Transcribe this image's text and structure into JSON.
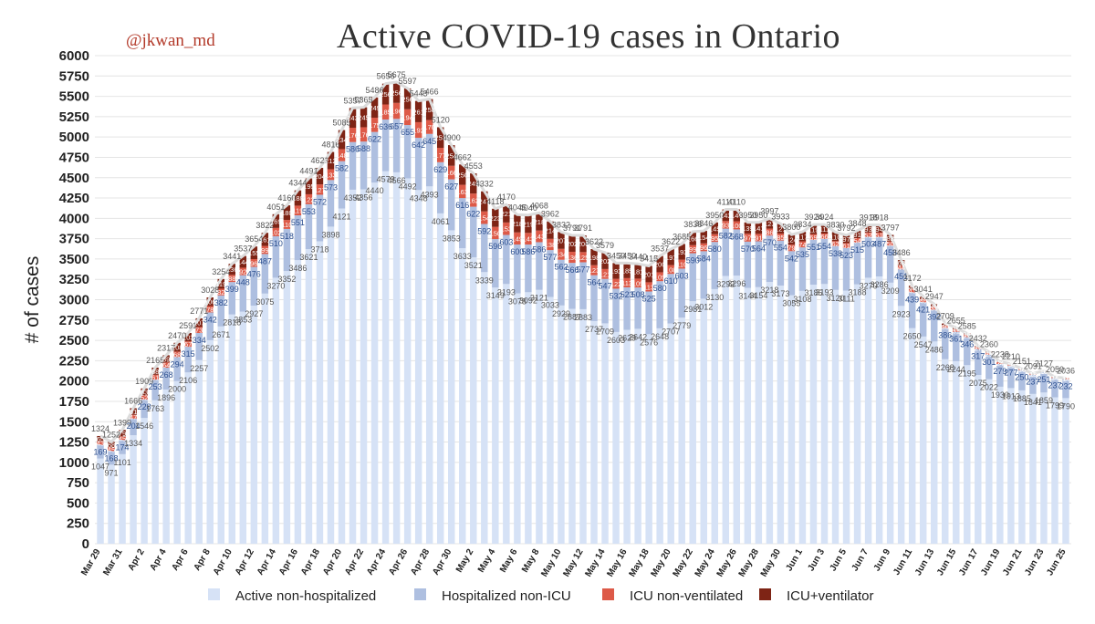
{
  "watermark": "@jkwan_md",
  "chart_data": {
    "type": "bar",
    "stacked": true,
    "title": "Active COVID-19 cases in Ontario",
    "ylabel": "# of cases",
    "xlabel": "",
    "ylim": [
      0,
      6000
    ],
    "yticks": [
      0,
      250,
      500,
      750,
      1000,
      1250,
      1500,
      1750,
      2000,
      2250,
      2500,
      2750,
      3000,
      3250,
      3500,
      3750,
      4000,
      4250,
      4500,
      4750,
      5000,
      5250,
      5500,
      5750,
      6000
    ],
    "grid": true,
    "legend_position": "bottom",
    "xtick_labels": [
      "Mar 29",
      "Mar 31",
      "Apr 2",
      "Apr 4",
      "Apr 6",
      "Apr 8",
      "Apr 10",
      "Apr 12",
      "Apr 14",
      "Apr 16",
      "Apr 18",
      "Apr 20",
      "Apr 22",
      "Apr 24",
      "Apr 26",
      "Apr 28",
      "Apr 30",
      "May 2",
      "May 4",
      "May 6",
      "May 8",
      "May 10",
      "May 12",
      "May 14",
      "May 16",
      "May 18",
      "May 20",
      "May 22",
      "May 24",
      "May 26",
      "May 28",
      "May 30",
      "Jun 1",
      "Jun 3",
      "Jun 5",
      "Jun 7",
      "Jun 9",
      "Jun 11",
      "Jun 13",
      "Jun 15",
      "Jun 17",
      "Jun 19",
      "Jun 21",
      "Jun 23",
      "Jun 25"
    ],
    "categories": [
      "Mar 29",
      "Mar 30",
      "Mar 31",
      "Apr 1",
      "Apr 2",
      "Apr 3",
      "Apr 4",
      "Apr 5",
      "Apr 6",
      "Apr 7",
      "Apr 8",
      "Apr 9",
      "Apr 10",
      "Apr 11",
      "Apr 12",
      "Apr 13",
      "Apr 14",
      "Apr 15",
      "Apr 16",
      "Apr 17",
      "Apr 18",
      "Apr 19",
      "Apr 20",
      "Apr 21",
      "Apr 22",
      "Apr 23",
      "Apr 24",
      "Apr 25",
      "Apr 26",
      "Apr 27",
      "Apr 28",
      "Apr 29",
      "Apr 30",
      "May 1",
      "May 2",
      "May 3",
      "May 4",
      "May 5",
      "May 6",
      "May 7",
      "May 8",
      "May 9",
      "May 10",
      "May 11",
      "May 12",
      "May 13",
      "May 14",
      "May 15",
      "May 16",
      "May 17",
      "May 18",
      "May 19",
      "May 20",
      "May 21",
      "May 22",
      "May 23",
      "May 24",
      "May 25",
      "May 26",
      "May 27",
      "May 28",
      "May 29",
      "May 30",
      "May 31",
      "Jun 1",
      "Jun 2",
      "Jun 3",
      "Jun 4",
      "Jun 5",
      "Jun 6",
      "Jun 7",
      "Jun 8",
      "Jun 9",
      "Jun 10",
      "Jun 11",
      "Jun 12",
      "Jun 13",
      "Jun 14",
      "Jun 15",
      "Jun 16",
      "Jun 17",
      "Jun 18",
      "Jun 19",
      "Jun 20",
      "Jun 21",
      "Jun 22",
      "Jun 23",
      "Jun 24",
      "Jun 25"
    ],
    "totals": [
      1324,
      1252,
      1399,
      1666,
      1909,
      2165,
      2317,
      2470,
      2591,
      2771,
      3028,
      3254,
      3441,
      3537,
      3654,
      3822,
      4051,
      4160,
      4344,
      4491,
      4621,
      4816,
      5085,
      5357,
      5365,
      5486,
      5656,
      5675,
      5597,
      5443,
      5466,
      5120,
      4900,
      4662,
      4553,
      4332,
      4118,
      4170,
      4045,
      4040,
      4068,
      3962,
      3832,
      3791,
      3791,
      3622,
      3579,
      3450,
      3450,
      3440,
      3415,
      3537,
      3622,
      3685,
      3836,
      3846,
      3950,
      4110,
      4110,
      3950,
      3950,
      3997,
      3933,
      3800,
      3834,
      3924,
      3924,
      3830,
      3792,
      3848,
      3918,
      3918,
      3797,
      3486,
      3172,
      3041,
      2947,
      2709,
      2655,
      2585,
      2432,
      2360,
      2238,
      2210,
      2151,
      2091,
      2127,
      2050,
      2036
    ],
    "series": [
      {
        "name": "Active non-hospitalized",
        "values": [
          1047,
          971,
          1101,
          1334,
          1546,
          1763,
          1896,
          2000,
          2106,
          2257,
          2502,
          2671,
          2818,
          2853,
          2927,
          3075,
          3270,
          3352,
          3486,
          3621,
          3718,
          3898,
          4121,
          4352,
          4356,
          4440,
          4579,
          4566,
          4492,
          4348,
          4393,
          4061,
          3853,
          3633,
          3521,
          3339,
          3149,
          3193,
          3078,
          3092,
          3121,
          3033,
          2929,
          2887,
          2883,
          2737,
          2709,
          2603,
          2629,
          2642,
          2576,
          2648,
          2707,
          2779,
          2981,
          3012,
          3130,
          3292,
          3296,
          3144,
          3154,
          3218,
          3173,
          3055,
          3108,
          3185,
          3193,
          3120,
          3111,
          3188,
          3270,
          3286,
          3209,
          2923,
          2650,
          2547,
          2486,
          2268,
          2244,
          2195,
          2075,
          2022,
          1930,
          1913,
          1885,
          1841,
          1859,
          1799,
          1790
        ]
      },
      {
        "name": "Hospitalized non-ICU",
        "values": [
          169,
          168,
          174,
          204,
          228,
          253,
          268,
          294,
          315,
          334,
          342,
          382,
          399,
          448,
          476,
          487,
          510,
          518,
          551,
          553,
          572,
          573,
          582,
          586,
          588,
          622,
          636,
          657,
          655,
          642,
          645,
          629,
          627,
          616,
          622,
          592,
          596,
          603,
          600,
          586,
          586,
          577,
          562,
          566,
          577,
          564,
          547,
          532,
          523,
          508,
          525,
          580,
          610,
          603,
          590,
          584,
          580,
          582,
          568,
          570,
          564,
          570,
          554,
          542,
          535,
          551,
          554,
          538,
          523,
          515,
          503,
          487,
          456,
          451,
          439,
          421,
          392,
          386,
          361,
          346,
          317,
          301,
          279,
          277,
          250,
          237,
          251,
          237,
          232
        ]
      },
      {
        "name": "ICU non-ventilated",
        "values": [
          43,
          45,
          45,
          47,
          52,
          61,
          64,
          68,
          67,
          73,
          78,
          82,
          88,
          92,
          96,
          99,
          102,
          110,
          119,
          122,
          127,
          133,
          148,
          176,
          176,
          175,
          185,
          196,
          194,
          192,
          170,
          177,
          166,
          163,
          162,
          154,
          150,
          153,
          149,
          143,
          143,
          138,
          134,
          136,
          125,
          123,
          121,
          122,
          113,
          109,
          113,
          109,
          108,
          110,
          99,
          96,
          95,
          93,
          100,
          97,
          91,
          86,
          85,
          79,
          74,
          69,
          66,
          62,
          61,
          54,
          52,
          51,
          50,
          44,
          43,
          40,
          39,
          30,
          31,
          29,
          27,
          25,
          24,
          19,
          16,
          13,
          16,
          14,
          14
        ]
      },
      {
        "name": "ICU+ventilator",
        "values": [
          65,
          68,
          79,
          81,
          83,
          88,
          89,
          108,
          103,
          107,
          106,
          119,
          136,
          144,
          155,
          161,
          169,
          180,
          188,
          195,
          204,
          212,
          234,
          243,
          245,
          249,
          256,
          256,
          256,
          261,
          258,
          253,
          254,
          250,
          248,
          247,
          223,
          221,
          218,
          219,
          218,
          214,
          207,
          202,
          206,
          198,
          202,
          193,
          185,
          181,
          201,
          200,
          197,
          193,
          166,
          154,
          145,
          143,
          146,
          139,
          141,
          123,
          121,
          124,
          117,
          119,
          111,
          110,
          97,
          91,
          93,
          94,
          82,
          68,
          40,
          33,
          30,
          25,
          19,
          15,
          13,
          12,
          5,
          1,
          0,
          0,
          1,
          0,
          0
        ]
      }
    ]
  }
}
